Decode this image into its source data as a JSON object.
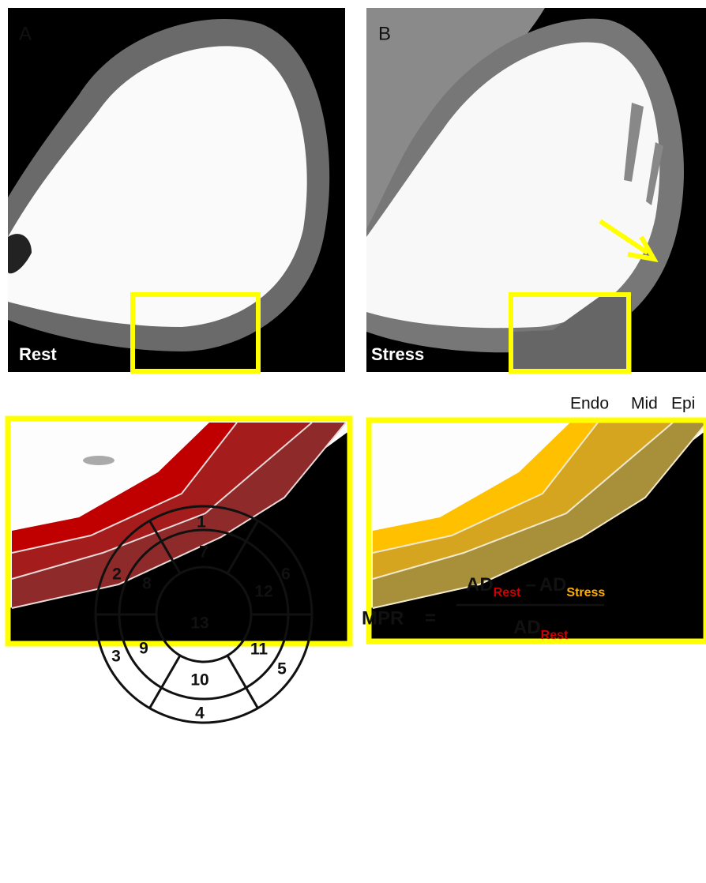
{
  "panels": {
    "a": {
      "label": "A",
      "caption": "Rest"
    },
    "b": {
      "label": "B",
      "caption": "Stress"
    }
  },
  "layers": [
    "Endo",
    "Mid",
    "Epi"
  ],
  "bullseye": {
    "segments": [
      "1",
      "2",
      "3",
      "4",
      "5",
      "6",
      "7",
      "8",
      "9",
      "10",
      "11",
      "12",
      "13"
    ]
  },
  "formula": {
    "lhs": "MPR",
    "equals": "=",
    "numerator": {
      "term1": "AD",
      "sub1": "Rest",
      "minus": "–",
      "term2": "AD",
      "sub2": "Stress"
    },
    "denominator": {
      "term": "AD",
      "sub": "Rest"
    }
  }
}
